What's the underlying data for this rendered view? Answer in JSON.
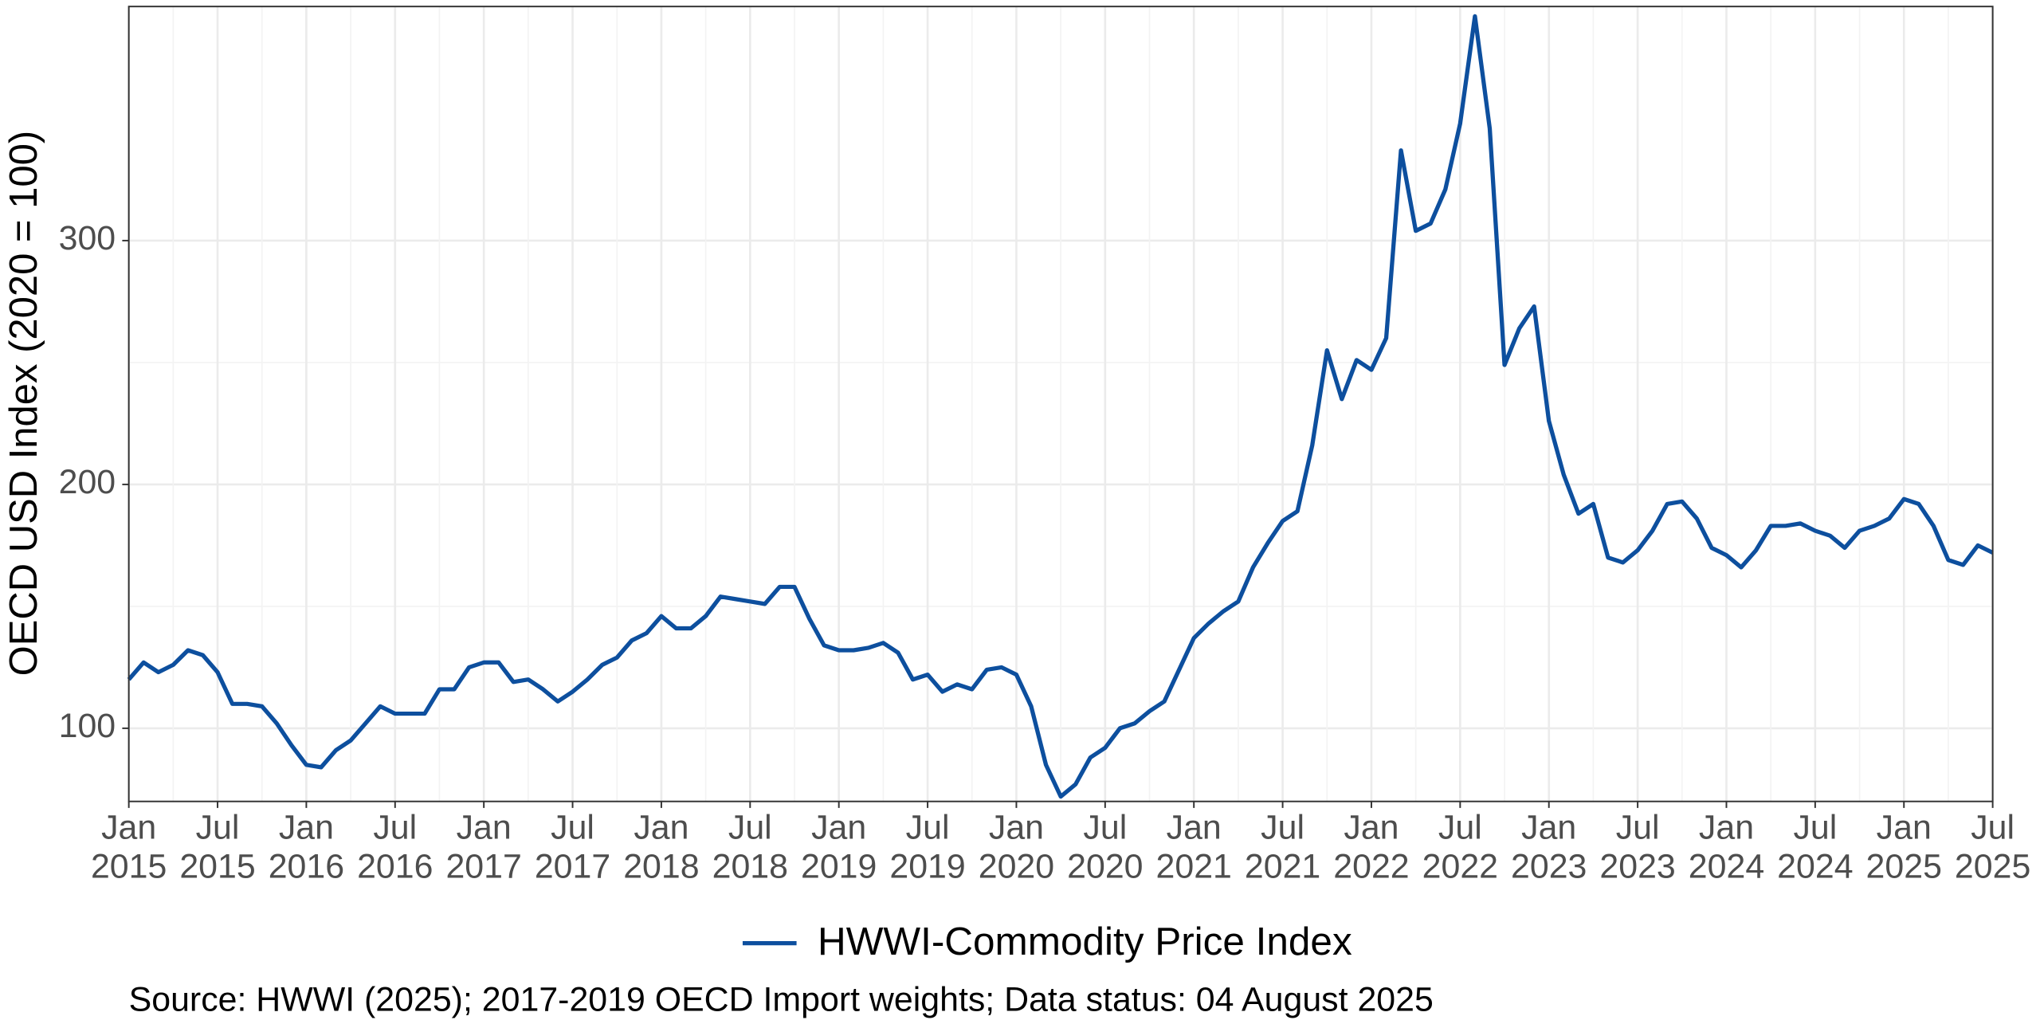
{
  "chart_data": {
    "type": "line",
    "y_label": "OECD USD Index (2020 = 100)",
    "caption": "Source: HWWI (2025); 2017-2019 OECD Import weights; Data status: 04 August 2025",
    "legend_position": "bottom",
    "grid": true,
    "xlim": [
      "2015-01",
      "2025-07"
    ],
    "ylim": [
      70,
      396
    ],
    "yticks": [
      100,
      200,
      300
    ],
    "xticks": [
      {
        "value": "2015-01",
        "label": "Jan 2015"
      },
      {
        "value": "2015-07",
        "label": "Jul 2015"
      },
      {
        "value": "2016-01",
        "label": "Jan 2016"
      },
      {
        "value": "2016-07",
        "label": "Jul 2016"
      },
      {
        "value": "2017-01",
        "label": "Jan 2017"
      },
      {
        "value": "2017-07",
        "label": "Jul 2017"
      },
      {
        "value": "2018-01",
        "label": "Jan 2018"
      },
      {
        "value": "2018-07",
        "label": "Jul 2018"
      },
      {
        "value": "2019-01",
        "label": "Jan 2019"
      },
      {
        "value": "2019-07",
        "label": "Jul 2019"
      },
      {
        "value": "2020-01",
        "label": "Jan 2020"
      },
      {
        "value": "2020-07",
        "label": "Jul 2020"
      },
      {
        "value": "2021-01",
        "label": "Jan 2021"
      },
      {
        "value": "2021-07",
        "label": "Jul 2021"
      },
      {
        "value": "2022-01",
        "label": "Jan 2022"
      },
      {
        "value": "2022-07",
        "label": "Jul 2022"
      },
      {
        "value": "2023-01",
        "label": "Jan 2023"
      },
      {
        "value": "2023-07",
        "label": "Jul 2023"
      },
      {
        "value": "2024-01",
        "label": "Jan 2024"
      },
      {
        "value": "2024-07",
        "label": "Jul 2024"
      },
      {
        "value": "2025-01",
        "label": "Jan 2025"
      },
      {
        "value": "2025-07",
        "label": "Jul 2025"
      }
    ],
    "x": [
      "2015-01",
      "2015-02",
      "2015-03",
      "2015-04",
      "2015-05",
      "2015-06",
      "2015-07",
      "2015-08",
      "2015-09",
      "2015-10",
      "2015-11",
      "2015-12",
      "2016-01",
      "2016-02",
      "2016-03",
      "2016-04",
      "2016-05",
      "2016-06",
      "2016-07",
      "2016-08",
      "2016-09",
      "2016-10",
      "2016-11",
      "2016-12",
      "2017-01",
      "2017-02",
      "2017-03",
      "2017-04",
      "2017-05",
      "2017-06",
      "2017-07",
      "2017-08",
      "2017-09",
      "2017-10",
      "2017-11",
      "2017-12",
      "2018-01",
      "2018-02",
      "2018-03",
      "2018-04",
      "2018-05",
      "2018-06",
      "2018-07",
      "2018-08",
      "2018-09",
      "2018-10",
      "2018-11",
      "2018-12",
      "2019-01",
      "2019-02",
      "2019-03",
      "2019-04",
      "2019-05",
      "2019-06",
      "2019-07",
      "2019-08",
      "2019-09",
      "2019-10",
      "2019-11",
      "2019-12",
      "2020-01",
      "2020-02",
      "2020-03",
      "2020-04",
      "2020-05",
      "2020-06",
      "2020-07",
      "2020-08",
      "2020-09",
      "2020-10",
      "2020-11",
      "2020-12",
      "2021-01",
      "2021-02",
      "2021-03",
      "2021-04",
      "2021-05",
      "2021-06",
      "2021-07",
      "2021-08",
      "2021-09",
      "2021-10",
      "2021-11",
      "2021-12",
      "2022-01",
      "2022-02",
      "2022-03",
      "2022-04",
      "2022-05",
      "2022-06",
      "2022-07",
      "2022-08",
      "2022-09",
      "2022-10",
      "2022-11",
      "2022-12",
      "2023-01",
      "2023-02",
      "2023-03",
      "2023-04",
      "2023-05",
      "2023-06",
      "2023-07",
      "2023-08",
      "2023-09",
      "2023-10",
      "2023-11",
      "2023-12",
      "2024-01",
      "2024-02",
      "2024-03",
      "2024-04",
      "2024-05",
      "2024-06",
      "2024-07",
      "2024-08",
      "2024-09",
      "2024-10",
      "2024-11",
      "2024-12",
      "2025-01",
      "2025-02",
      "2025-03",
      "2025-04",
      "2025-05",
      "2025-06",
      "2025-07"
    ],
    "series": [
      {
        "name": "HWWI-Commodity Price Index",
        "color": "#0d4f9e",
        "values": [
          120,
          127,
          123,
          126,
          132,
          130,
          123,
          110,
          110,
          109,
          102,
          93,
          85,
          84,
          91,
          95,
          102,
          109,
          106,
          106,
          106,
          116,
          116,
          125,
          127,
          127,
          119,
          120,
          116,
          111,
          115,
          120,
          126,
          129,
          136,
          139,
          146,
          141,
          141,
          146,
          154,
          153,
          152,
          151,
          158,
          158,
          145,
          134,
          132,
          132,
          133,
          135,
          131,
          120,
          122,
          115,
          118,
          116,
          124,
          125,
          122,
          109,
          85,
          72,
          77,
          88,
          92,
          100,
          102,
          107,
          111,
          124,
          137,
          143,
          148,
          152,
          166,
          176,
          185,
          189,
          216,
          255,
          235,
          251,
          247,
          260,
          337,
          304,
          307,
          321,
          348,
          392,
          346,
          249,
          264,
          273,
          226,
          204,
          188,
          192,
          170,
          168,
          173,
          181,
          192,
          193,
          186,
          174,
          171,
          166,
          173,
          183,
          183,
          184,
          181,
          179,
          174,
          181,
          183,
          186,
          194,
          192,
          183,
          169,
          167,
          175,
          172
        ]
      }
    ]
  }
}
